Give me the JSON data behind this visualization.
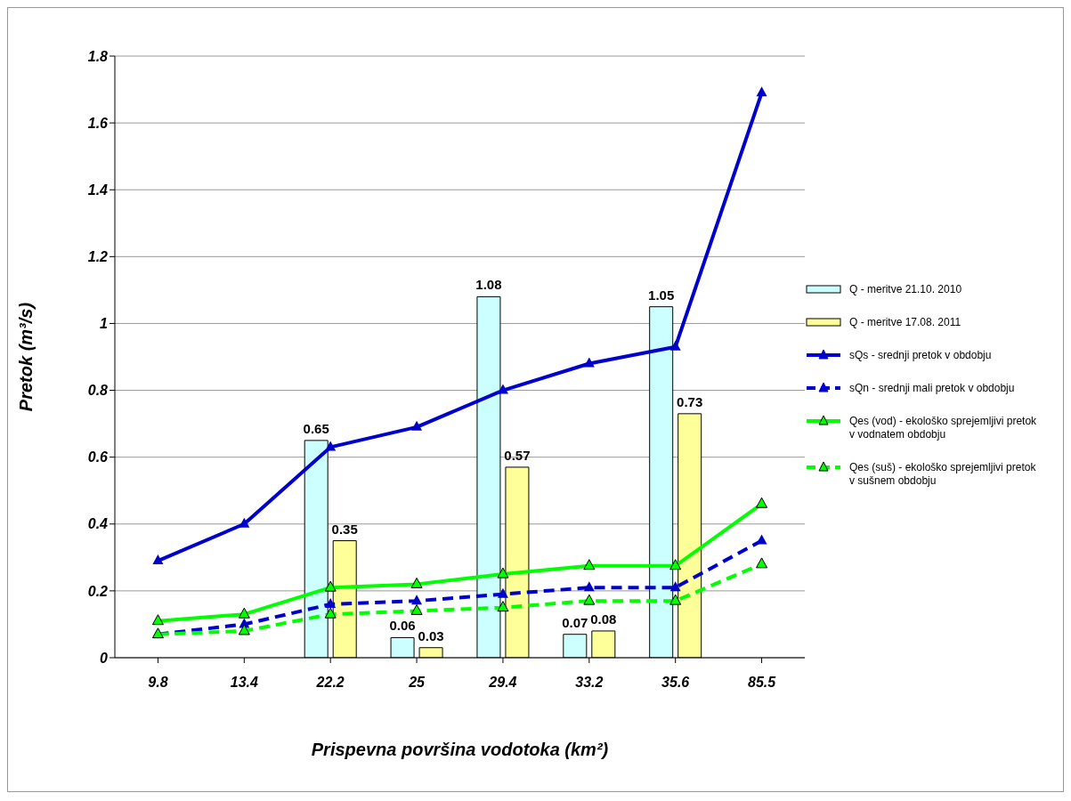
{
  "chart_data": {
    "type": "bar",
    "xlabel": "Prispevna površina vodotoka (km²)",
    "ylabel": "Pretok (m³/s)",
    "categories": [
      "9.8",
      "13.4",
      "22.2",
      "25",
      "29.4",
      "33.2",
      "35.6",
      "85.5"
    ],
    "ylim": [
      0,
      1.8
    ],
    "yticks": [
      0,
      0.2,
      0.4,
      0.6,
      0.8,
      1,
      1.2,
      1.4,
      1.6,
      1.8
    ],
    "grid": "y",
    "legend": "right",
    "series": [
      {
        "name": "Q - meritve 21.10. 2010",
        "color": "#ccffff",
        "values": [
          null,
          null,
          0.65,
          0.06,
          1.08,
          0.07,
          1.05,
          null
        ],
        "value_labels": [
          null,
          null,
          "0.65",
          "0.06",
          "1.08",
          "0.07",
          "1.05",
          null
        ]
      },
      {
        "name": "Q - meritve 17.08. 2011",
        "color": "#ffff99",
        "values": [
          null,
          null,
          0.35,
          0.03,
          0.57,
          0.08,
          0.73,
          null
        ],
        "value_labels": [
          null,
          null,
          "0.35",
          "0.03",
          "0.57",
          "0.08",
          "0.73",
          null
        ]
      },
      {
        "name": "sQs - srednji pretok v obdobju",
        "type": "line",
        "color": "#0000cc",
        "marker": "triangle",
        "line_style": "solid",
        "values": [
          0.29,
          0.4,
          0.63,
          0.69,
          0.8,
          0.88,
          0.93,
          1.69
        ]
      },
      {
        "name": "sQn - srednji mali pretok v obdobju",
        "type": "line",
        "color": "#0000cc",
        "marker": "triangle",
        "line_style": "dashed",
        "values": [
          0.07,
          0.1,
          0.16,
          0.17,
          0.19,
          0.21,
          0.21,
          0.35
        ]
      },
      {
        "name": "Qes (vod) - ekološko sprejemljivi pretok v vodnatem obdobju",
        "type": "line",
        "color": "#00ff00",
        "marker": "triangle",
        "line_style": "solid",
        "values": [
          0.11,
          0.13,
          0.21,
          0.22,
          0.25,
          0.275,
          0.275,
          0.46
        ]
      },
      {
        "name": "Qes (suš) - ekološko sprejemljivi pretok v sušnem obdobju",
        "type": "line",
        "color": "#00ff00",
        "marker": "triangle",
        "line_style": "dashed",
        "values": [
          0.07,
          0.08,
          0.13,
          0.14,
          0.15,
          0.17,
          0.17,
          0.28
        ]
      }
    ]
  }
}
